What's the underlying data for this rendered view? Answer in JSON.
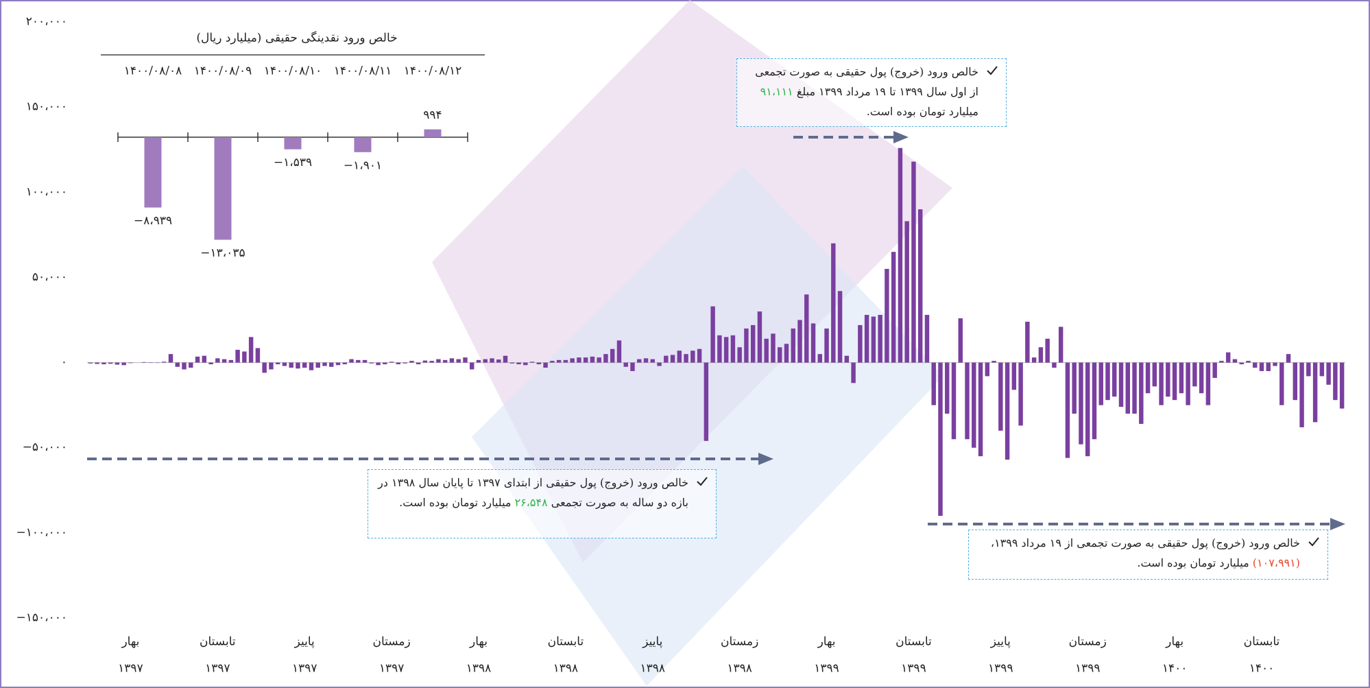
{
  "chart_data": [
    {
      "type": "bar",
      "color": "#7a3f9f",
      "ylim": [
        -150000,
        200000
      ],
      "yticks": [
        {
          "value": 200000,
          "label": "۲۰۰،۰۰۰"
        },
        {
          "value": 150000,
          "label": "۱۵۰،۰۰۰"
        },
        {
          "value": 100000,
          "label": "۱۰۰،۰۰۰"
        },
        {
          "value": 50000,
          "label": "۵۰،۰۰۰"
        },
        {
          "value": 0,
          "label": "۰"
        },
        {
          "value": -50000,
          "label": "−۵۰،۰۰۰"
        },
        {
          "value": -100000,
          "label": "−۱۰۰،۰۰۰"
        },
        {
          "value": -150000,
          "label": "−۱۵۰،۰۰۰"
        }
      ],
      "categories": [
        null,
        null,
        null,
        null,
        null,
        null,
        {
          "season": "بهار",
          "year": "۱۳۹۷"
        },
        null,
        null,
        null,
        null,
        null,
        null,
        null,
        null,
        null,
        null,
        null,
        null,
        {
          "season": "تابستان",
          "year": "۱۳۹۷"
        },
        null,
        null,
        null,
        null,
        null,
        null,
        null,
        null,
        null,
        null,
        null,
        null,
        {
          "season": "پاییز",
          "year": "۱۳۹۷"
        },
        null,
        null,
        null,
        null,
        null,
        null,
        null,
        null,
        null,
        null,
        null,
        null,
        {
          "season": "زمستان",
          "year": "۱۳۹۷"
        },
        null,
        null,
        null,
        null,
        null,
        null,
        null,
        null,
        null,
        null,
        null,
        null,
        {
          "season": "بهار",
          "year": "۱۳۹۸"
        },
        null,
        null,
        null,
        null,
        null,
        null,
        null,
        null,
        null,
        null,
        null,
        null,
        {
          "season": "تابستان",
          "year": "۱۳۹۸"
        },
        null,
        null,
        null,
        null,
        null,
        null,
        null,
        null,
        null,
        null,
        null,
        null,
        {
          "season": "پاییز",
          "year": "۱۳۹۸"
        },
        null,
        null,
        null,
        null,
        null,
        null,
        null,
        null,
        null,
        null,
        null,
        null,
        {
          "season": "زمستان",
          "year": "۱۳۹۸"
        },
        null,
        null,
        null,
        null,
        null,
        null,
        null,
        null,
        null,
        null,
        null,
        null,
        {
          "season": "بهار",
          "year": "۱۳۹۹"
        },
        null,
        null,
        null,
        null,
        null,
        null,
        null,
        null,
        null,
        null,
        null,
        null,
        {
          "season": "تابستان",
          "year": "۱۳۹۹"
        },
        null,
        null,
        null,
        null,
        null,
        null,
        null,
        null,
        null,
        null,
        null,
        null,
        {
          "season": "پاییز",
          "year": "۱۳۹۹"
        },
        null,
        null,
        null,
        null,
        null,
        null,
        null,
        null,
        null,
        null,
        null,
        null,
        {
          "season": "زمستان",
          "year": "۱۳۹۹"
        },
        null,
        null,
        null,
        null,
        null,
        null,
        null,
        null,
        null,
        null,
        null,
        null,
        {
          "season": "بهار",
          "year": "۱۴۰۰"
        },
        null,
        null,
        null,
        null,
        null,
        null,
        null,
        null,
        null,
        null,
        null,
        null,
        {
          "season": "تابستان",
          "year": "۱۴۰۰"
        },
        null,
        null,
        null,
        null,
        null,
        null,
        null,
        null,
        null,
        null,
        null,
        null
      ],
      "values": [
        -500,
        -800,
        -1000,
        -700,
        -1200,
        -1500,
        -300,
        0,
        300,
        200,
        -200,
        500,
        5000,
        -2500,
        -4000,
        -3000,
        3500,
        4000,
        -1000,
        2500,
        2000,
        1500,
        7500,
        6500,
        15000,
        8500,
        -6000,
        -4000,
        -1000,
        -2000,
        -3000,
        -3500,
        -3000,
        -4500,
        -3000,
        -2000,
        -2500,
        -1500,
        -1000,
        2000,
        1500,
        1500,
        -500,
        -1500,
        -1000,
        500,
        -1000,
        -500,
        1000,
        -1000,
        1200,
        1000,
        2000,
        1500,
        2500,
        2000,
        3000,
        -4000,
        1500,
        2000,
        2500,
        1800,
        4000,
        -500,
        -1000,
        -1500,
        500,
        -1000,
        -3000,
        1000,
        1500,
        1500,
        2500,
        3000,
        3000,
        3500,
        3000,
        5000,
        8000,
        13000,
        -2500,
        -5000,
        2000,
        2500,
        2000,
        -2000,
        4000,
        4500,
        7000,
        5000,
        7000,
        8000,
        -46000,
        33000,
        16000,
        15000,
        16000,
        9000,
        20000,
        22000,
        30000,
        14000,
        17000,
        9000,
        11000,
        20000,
        25000,
        40000,
        23000,
        5000,
        20000,
        70000,
        42000,
        4000,
        -12000,
        22000,
        28000,
        27000,
        28000,
        55000,
        65000,
        126000,
        83000,
        118000,
        90000,
        28000,
        -25000,
        -90000,
        -30000,
        -45000,
        26000,
        -45000,
        -50000,
        -55000,
        -8000,
        1000,
        -40000,
        -57000,
        -16000,
        -37000,
        24000,
        3000,
        9000,
        14000,
        -3000,
        21000,
        -56000,
        -30000,
        -48000,
        -55000,
        -45000,
        -25000,
        -22000,
        -20000,
        -26000,
        -30000,
        -30000,
        -36000,
        -18000,
        -14000,
        -25000,
        -20000,
        -22000,
        -18000,
        -25000,
        -14000,
        -18000,
        -25000,
        -9000,
        1000,
        6000,
        2000,
        -1000,
        1000,
        -3000,
        -5000,
        -5000,
        -2000,
        -25000,
        5000,
        -22000,
        -38000,
        -8000,
        -35000,
        -8000,
        -13000,
        -22000,
        -27000
      ],
      "annotations": [
        {
          "before": "خالص ورود (خروج) پول حقیقی به صورت تجمعی از اول سال ۱۳۹۹ تا ۱۹ مرداد ۱۳۹۹ مبلغ ",
          "highlight": "۹۱،۱۱۱",
          "after": " میلیارد تومان بوده است.",
          "color": "#2fb34a"
        },
        {
          "before": "خالص ورود (خروج) پول حقیقی از ابتدای ۱۳۹۷ تا پایان سال ۱۳۹۸ در بازه دو ساله به صورت تجمعی ",
          "highlight": "۲۶،۵۴۸",
          "after": " میلیارد تومان بوده است.",
          "color": "#2fb34a"
        },
        {
          "before": "خالص ورود (خروج) پول حقیقی به صورت تجمعی از ۱۹ مرداد ۱۳۹۹، ",
          "highlight": "(۱۰۷،۹۹۱)",
          "after": " میلیارد تومان بوده است.",
          "color": "#e8472b"
        }
      ]
    },
    {
      "type": "bar",
      "color": "#a07bbd",
      "title": "خالص ورود نقدینگی حقیقی (میلیارد ریال)",
      "categories": [
        "۱۴۰۰/۰۸/۰۸",
        "۱۴۰۰/۰۸/۰۹",
        "۱۴۰۰/۰۸/۱۰",
        "۱۴۰۰/۰۸/۱۱",
        "۱۴۰۰/۰۸/۱۲"
      ],
      "values": [
        -8939,
        -13035,
        -1539,
        -1901,
        994
      ],
      "value_labels": [
        "−۸،۹۳۹",
        "−۱۳،۰۳۵",
        "−۱،۵۳۹",
        "−۱،۹۰۱",
        "۹۹۴"
      ]
    }
  ]
}
